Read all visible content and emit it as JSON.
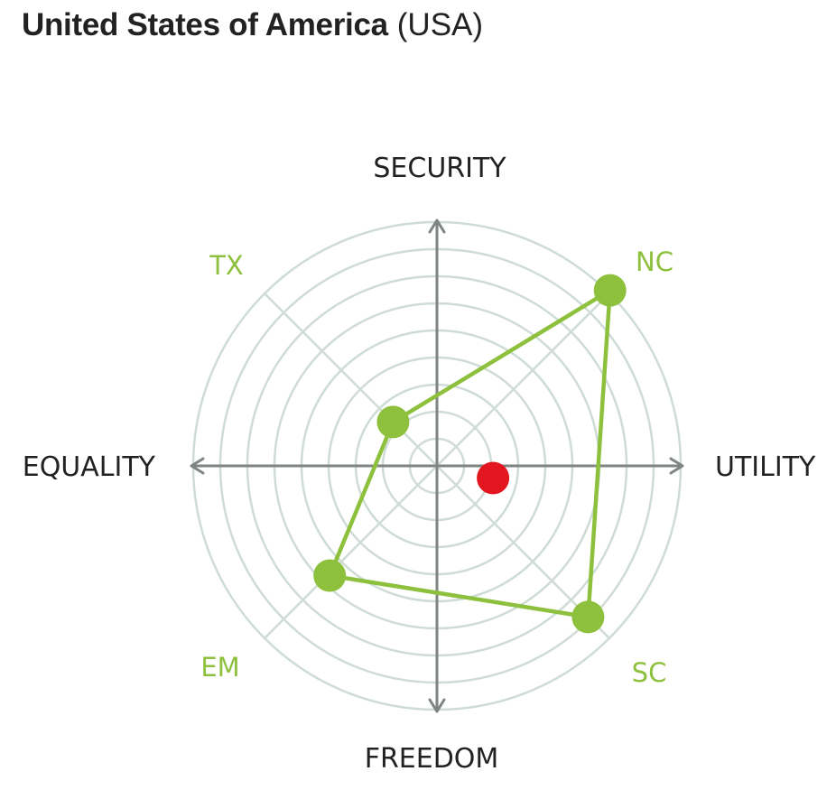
{
  "header": {
    "country_name": "United States of America",
    "country_code": "(USA)"
  },
  "chart_data": {
    "type": "radar",
    "rings": 9,
    "axes": {
      "top": "SECURITY",
      "right": "UTILITY",
      "bottom": "FREEDOM",
      "left": "EQUALITY"
    },
    "quadrant_labels": [
      "NC",
      "SC",
      "EM",
      "TX"
    ],
    "polygon_points": [
      {
        "label": "NC",
        "utility": 0.71,
        "security": 0.72
      },
      {
        "label": "SC",
        "utility": 0.62,
        "security": -0.62
      },
      {
        "label": "EM",
        "utility": -0.44,
        "security": -0.45
      },
      {
        "label": "TX",
        "utility": -0.18,
        "security": 0.18
      }
    ],
    "center_point": {
      "utility": 0.23,
      "security": -0.05
    },
    "colors": {
      "polygon": "#8dc03c",
      "center_point": "#e3151f",
      "rings": "#cfdcd6",
      "axes": "#7f8583"
    }
  }
}
